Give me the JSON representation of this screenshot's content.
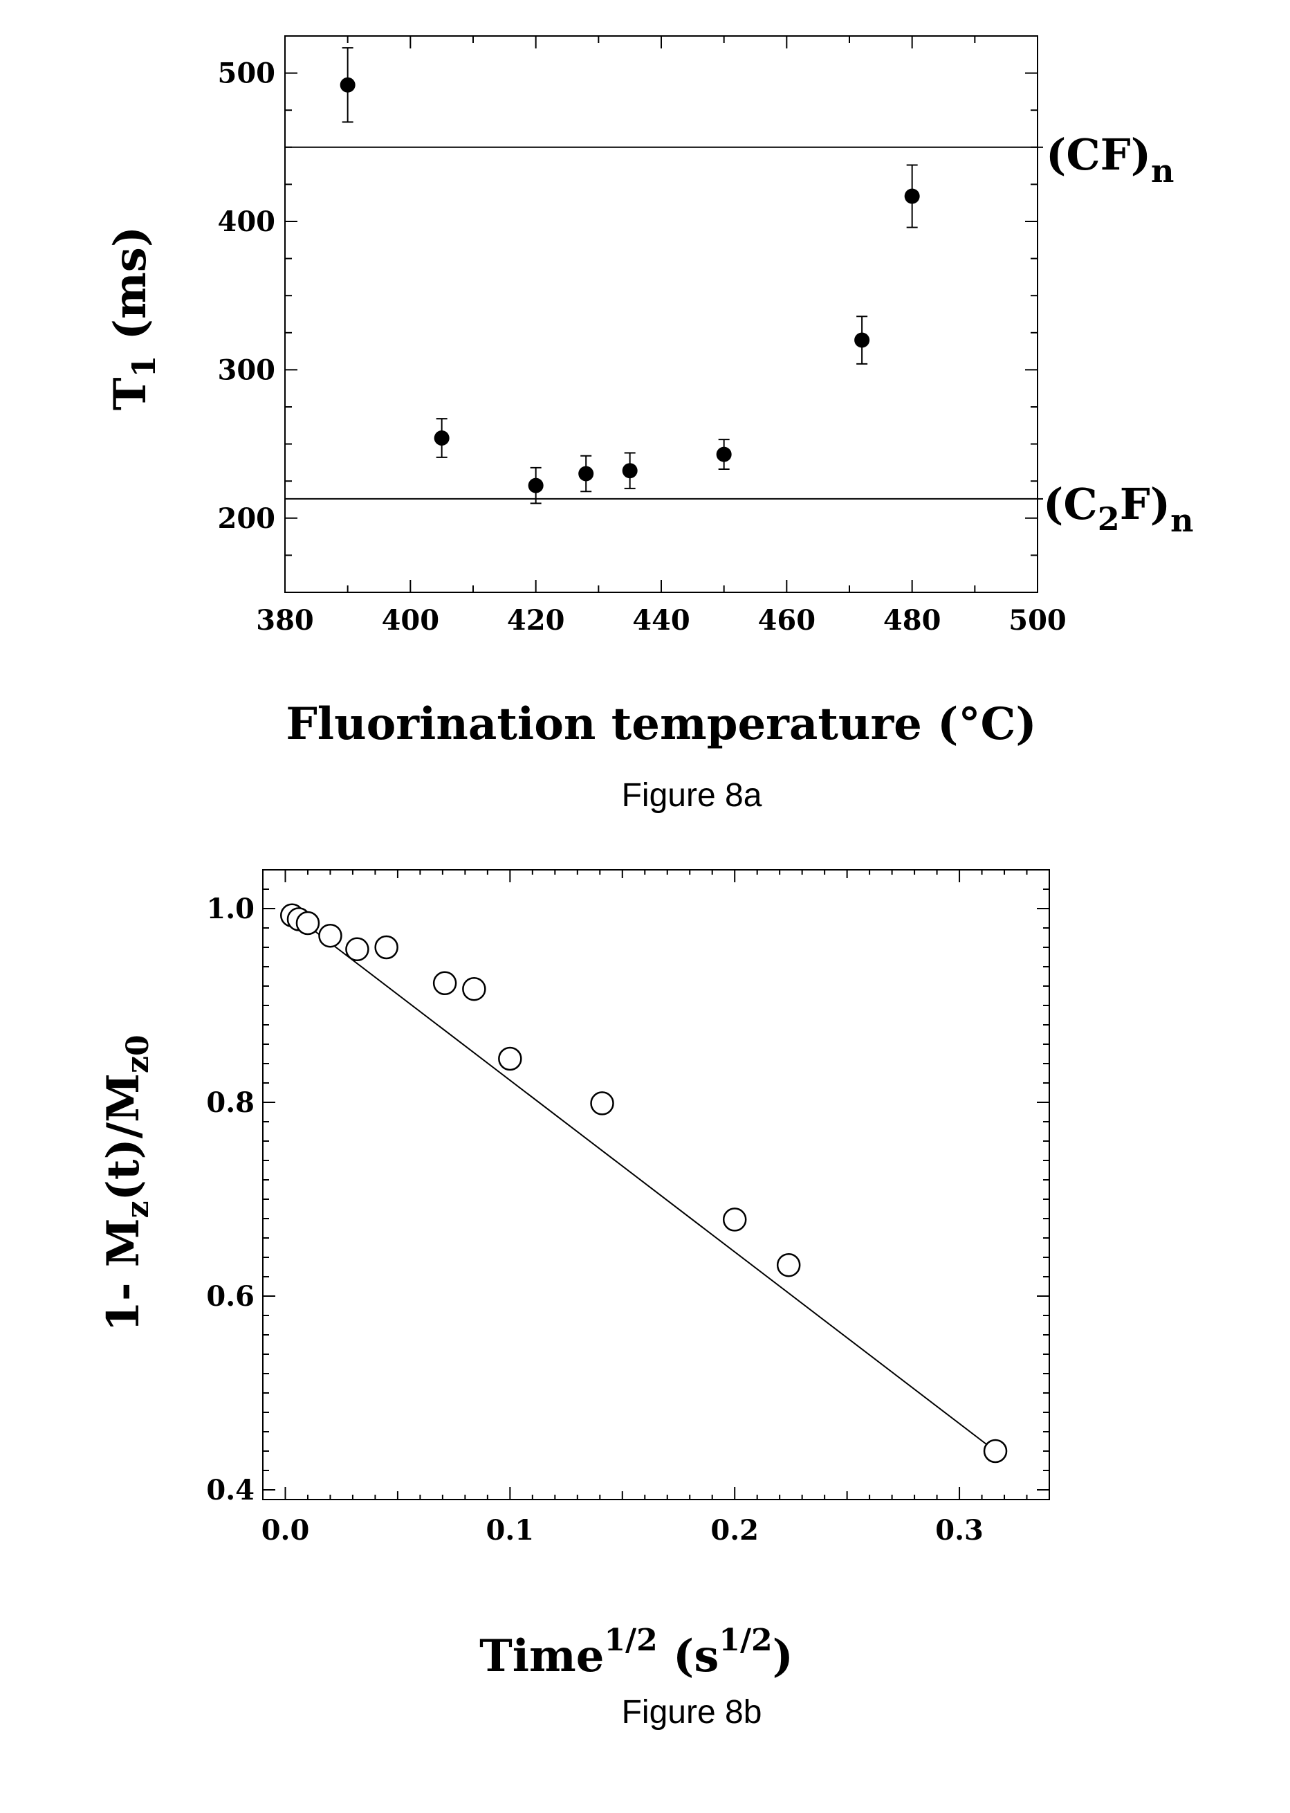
{
  "chart_data": [
    {
      "type": "scatter",
      "caption": "Figure 8a",
      "xlabel": "Fluorination temperature (°C)",
      "ylabel": {
        "main": "T",
        "sub": "1",
        "rest": " (ms)"
      },
      "xlim": [
        380,
        500
      ],
      "ylim": [
        150,
        525
      ],
      "xticks": [
        "380",
        "400",
        "420",
        "440",
        "460",
        "480",
        "500"
      ],
      "yticks": [
        "200",
        "300",
        "400",
        "500"
      ],
      "series": [
        {
          "marker": "filled-circle",
          "x": [
            390,
            405,
            420,
            428,
            435,
            450,
            472,
            480
          ],
          "y": [
            492,
            254,
            222,
            230,
            232,
            243,
            320,
            417
          ],
          "error": [
            25,
            13,
            12,
            12,
            12,
            10,
            16,
            21
          ]
        }
      ],
      "reference_lines": [
        {
          "y": 450,
          "label": {
            "base": "(CF)",
            "sub": "n"
          }
        },
        {
          "y": 213,
          "label": {
            "base": "(C",
            "sub1": "2",
            "mid": "F)",
            "sub2": "n"
          }
        }
      ]
    },
    {
      "type": "scatter",
      "caption": "Figure 8b",
      "xlabel": {
        "base": "Time",
        "sup": "1/2",
        "open": " (s",
        "sup2": "1/2",
        "close": ")"
      },
      "ylabel": {
        "a": "1- M",
        "s1": "z",
        "b": "(t)/M",
        "s2": "z0"
      },
      "xlim": [
        -0.01,
        0.34
      ],
      "ylim": [
        0.39,
        1.04
      ],
      "xticks": [
        "0.0",
        "0.1",
        "0.2",
        "0.3"
      ],
      "yticks": [
        "0.4",
        "0.6",
        "0.8",
        "1.0"
      ],
      "series": [
        {
          "marker": "open-circle",
          "x": [
            0.003,
            0.006,
            0.01,
            0.02,
            0.032,
            0.045,
            0.071,
            0.084,
            0.1,
            0.141,
            0.2,
            0.224,
            0.316
          ],
          "y": [
            0.993,
            0.989,
            0.985,
            0.972,
            0.958,
            0.96,
            0.923,
            0.917,
            0.845,
            0.799,
            0.679,
            0.632,
            0.44
          ]
        }
      ],
      "fit_line": {
        "x": [
          0.0,
          0.316
        ],
        "y": [
          1.0,
          0.44
        ]
      }
    }
  ]
}
